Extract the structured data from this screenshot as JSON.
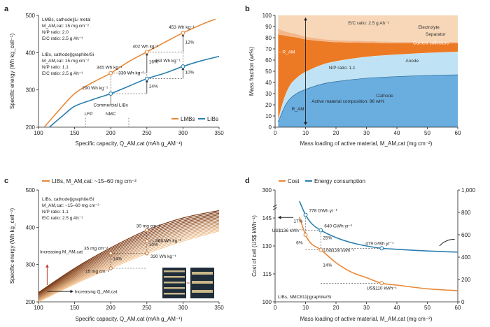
{
  "chart_data": [
    {
      "panel": "a",
      "type": "line",
      "ylabel": "Specific energy (Wh kg_cell⁻¹)",
      "xlabel": "Specific capacity, Q_AM,cat (mAh g_AM⁻¹)",
      "xlim": [
        100,
        350
      ],
      "ylim": [
        200,
        500
      ],
      "xticks": [
        100,
        150,
        200,
        250,
        300,
        350
      ],
      "yticks": [
        200,
        300,
        400,
        500
      ],
      "notes": {
        "lmb": [
          "LMBs, cathode||Li metal",
          "M_AM,cat: 15 mg cm⁻²",
          "N/P ratio: 2.0",
          "E/C ratio: 2.5 g Ah⁻¹"
        ],
        "lib": [
          "LIBs, cathode||graphite/Si",
          "M_AM,cat: 15 mg cm⁻²",
          "N/P ratio: 1.1",
          "E/C ratio: 2.5 g Ah⁻¹"
        ]
      },
      "series": [
        {
          "name": "LMBs",
          "color": "#e8893a",
          "x": [
            108,
            125,
            150,
            175,
            200,
            225,
            250,
            275,
            300,
            325,
            345
          ],
          "y": [
            200,
            238,
            290,
            320,
            345,
            376,
            402,
            428,
            453,
            475,
            490
          ]
        },
        {
          "name": "LIBs",
          "color": "#2a7fae",
          "x": [
            115,
            135,
            150,
            175,
            200,
            225,
            250,
            275,
            300,
            325,
            350
          ],
          "y": [
            200,
            233,
            256,
            274,
            290,
            310,
            330,
            345,
            363,
            378,
            390
          ]
        }
      ],
      "markers": [
        {
          "series": "LMBs",
          "x": 200,
          "y": 345,
          "label": "345 Wh kg⁻¹"
        },
        {
          "series": "LMBs",
          "x": 250,
          "y": 402,
          "label": "402 Wh kg⁻¹"
        },
        {
          "series": "LMBs",
          "x": 300,
          "y": 453,
          "label": "453 Wh kg⁻¹"
        },
        {
          "series": "LIBs",
          "x": 200,
          "y": 290,
          "label": "290 Wh kg⁻¹"
        },
        {
          "series": "LIBs",
          "x": 250,
          "y": 330,
          "label": "330 Wh kg⁻¹"
        },
        {
          "series": "LIBs",
          "x": 300,
          "y": 363,
          "label": "363 Wh kg⁻¹"
        }
      ],
      "percent_labels": [
        {
          "x": 250,
          "y": 375,
          "text": "16%"
        },
        {
          "x": 300,
          "y": 428,
          "text": "12%"
        },
        {
          "x": 250,
          "y": 310,
          "text": "14%"
        },
        {
          "x": 300,
          "y": 347,
          "text": "10%"
        }
      ],
      "annotations": [
        {
          "x": 200,
          "y": 255,
          "text": "Commercial LIBs"
        },
        {
          "x": 178,
          "y": 232,
          "text": "LFP"
        },
        {
          "x": 200,
          "y": 232,
          "text": "NMC"
        }
      ],
      "legend": "bottom-right"
    },
    {
      "panel": "b",
      "type": "area",
      "ylabel": "Mass fraction (wt%)",
      "xlabel": "Mass loading of active material, M_AM,cat (mg cm⁻²)",
      "xlim": [
        0,
        60
      ],
      "ylim": [
        0,
        100
      ],
      "xticks": [
        0,
        10,
        20,
        30,
        40,
        50,
        60
      ],
      "yticks": [
        0,
        10,
        20,
        30,
        40,
        50,
        60,
        70,
        80,
        90,
        100
      ],
      "x": [
        1,
        3,
        5,
        7.5,
        10,
        15,
        20,
        30,
        40,
        50,
        60
      ],
      "series": [
        {
          "name": "Cathode",
          "color": "#6aaee0",
          "values": [
            5,
            18,
            26,
            31,
            34,
            38.5,
            41,
            44,
            45.5,
            46.5,
            47
          ]
        },
        {
          "name": "Anode",
          "color": "#bfe3f4",
          "values": [
            2,
            8,
            12,
            14,
            15.5,
            17,
            18,
            19,
            19.5,
            20,
            20.5
          ]
        },
        {
          "name": "Current collectors",
          "color": "#ec7a24",
          "values": [
            76,
            56,
            43,
            35,
            29,
            21.5,
            17,
            12.5,
            10,
            8.5,
            7.5
          ]
        },
        {
          "name": "Separator",
          "color": "#f4b78a",
          "values": [
            5,
            4,
            3.5,
            3,
            2.5,
            2,
            1.8,
            1.5,
            1.3,
            1.2,
            1.1
          ]
        },
        {
          "name": "Electrolyte",
          "color": "#f7d7b8",
          "values": [
            12,
            14,
            15.5,
            17,
            19,
            21,
            22.2,
            23,
            23.7,
            23.8,
            23.9
          ]
        }
      ],
      "annotations": [
        {
          "text": "E/C ratio: 2.5 g Ah⁻¹"
        },
        {
          "text": "Electrolyte"
        },
        {
          "text": "Separator"
        },
        {
          "text": "Current collectors"
        },
        {
          "text": "Anode"
        },
        {
          "text": "N/P ratio: 1.1"
        },
        {
          "text": "Cathode"
        },
        {
          "text": "Active material composition: 96 wt%"
        },
        {
          "text": "1 − R_AM"
        },
        {
          "text": "R_AM"
        }
      ]
    },
    {
      "panel": "c",
      "type": "line",
      "ylabel": "Specific energy (Wh kg_cell⁻¹)",
      "xlabel": "Specific capacity, Q_AM,cat (mAh g_AM⁻¹)",
      "xlim": [
        100,
        350
      ],
      "ylim": [
        200,
        500
      ],
      "xticks": [
        100,
        150,
        200,
        250,
        300,
        350
      ],
      "yticks": [
        200,
        300,
        400,
        500
      ],
      "legend_label": "LIBs, M_AM,cat: ~15–60 mg cm⁻²",
      "notes": [
        "LIBs, cathode||graphite/Si",
        "M_AM,cat: ~15–60 mg cm⁻²",
        "N/P ratio: 1.1",
        "E/C ratio: 2.5 g Ah⁻¹"
      ],
      "x": [
        100,
        150,
        200,
        250,
        300,
        350
      ],
      "curve_loadings": [
        15,
        18,
        21,
        24,
        27,
        30,
        33,
        36,
        39,
        42,
        45,
        48,
        51,
        54,
        57,
        60
      ],
      "low": [
        200,
        248,
        290,
        330,
        363,
        390
      ],
      "high": [
        225,
        290,
        345,
        392,
        425,
        445
      ],
      "markers": [
        {
          "x": 200,
          "y": 290,
          "label": "15 mg cm⁻²"
        },
        {
          "x": 200,
          "y": 330,
          "label": "35 mg cm⁻²"
        },
        {
          "x": 250,
          "y": 330,
          "label": "330 Wh kg⁻¹"
        },
        {
          "x": 250,
          "y": 363,
          "label": "363 Wh kg⁻¹"
        },
        {
          "x": 250,
          "y": 392,
          "label": "30 mg cm⁻²"
        }
      ],
      "percent_labels": [
        {
          "x": 200,
          "y": 312,
          "text": "14%"
        },
        {
          "x": 250,
          "y": 350,
          "text": "10%"
        }
      ],
      "annotations": [
        {
          "text": "Increasing M_AM,cat"
        },
        {
          "text": "Increasing Q_AM,cat"
        }
      ]
    },
    {
      "panel": "d",
      "type": "line",
      "ylabel": "Cost of cell (US$ kWh⁻¹)",
      "y2label": "Energy consumption (GWh yr⁻¹)",
      "xlabel": "Mass loading of active material, M_AM,cat (mg cm⁻²)",
      "xlim": [
        0,
        60
      ],
      "ylim": [
        100,
        300
      ],
      "y2lim": [
        0,
        1000
      ],
      "xticks": [
        0,
        10,
        20,
        30,
        40,
        50,
        60
      ],
      "yticks": [
        100,
        115,
        130,
        145,
        300
      ],
      "y2ticks": [
        0,
        200,
        400,
        600,
        800,
        1000
      ],
      "note": "LIBs, NMC811||graphite/Si",
      "series": [
        {
          "name": "Cost",
          "color": "#e8893a",
          "axis": "left",
          "x": [
            8,
            10,
            12,
            15,
            20,
            25,
            30,
            35,
            40,
            50,
            60
          ],
          "y": [
            150,
            136,
            131,
            128,
            121,
            116,
            113,
            110,
            109,
            107,
            106
          ]
        },
        {
          "name": "Energy consumption",
          "color": "#2a7fae",
          "axis": "right",
          "x": [
            8,
            10,
            12,
            15,
            20,
            25,
            30,
            35,
            40,
            50,
            60
          ],
          "y": [
            900,
            778,
            700,
            640,
            575,
            530,
            500,
            479,
            470,
            455,
            445
          ]
        }
      ],
      "markers": [
        {
          "series": "Energy consumption",
          "x": 10,
          "y": 778,
          "label": "778 GWh yr⁻¹"
        },
        {
          "series": "Energy consumption",
          "x": 15,
          "y": 640,
          "label": "640 GWh yr⁻¹"
        },
        {
          "series": "Energy consumption",
          "x": 35,
          "y": 479,
          "label": "479 GWh yr⁻¹"
        },
        {
          "series": "Cost",
          "x": 10,
          "y": 136,
          "label": "US$136 kWh⁻¹"
        },
        {
          "series": "Cost",
          "x": 15,
          "y": 128,
          "label": "US$128 kWh⁻¹"
        },
        {
          "series": "Cost",
          "x": 35,
          "y": 110,
          "label": "US$110 kWh⁻¹"
        }
      ],
      "percent_labels": [
        {
          "text": "17%"
        },
        {
          "text": "25%"
        },
        {
          "text": "6%"
        },
        {
          "text": "14%"
        }
      ],
      "legend": "top"
    }
  ]
}
